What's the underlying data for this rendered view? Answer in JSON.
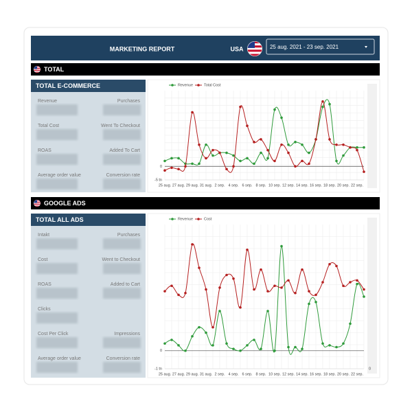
{
  "header": {
    "title": "MARKETING REPORT",
    "country": "USA",
    "date_range": "25 aug. 2021 - 23 sep. 2021"
  },
  "sections": [
    {
      "title": "TOTAL",
      "panel_title": "TOTAL E-COMMERCE",
      "metrics": [
        [
          "Revenue",
          "Purchases"
        ],
        [
          "Total Cost",
          "Went To Checkout"
        ],
        [
          "ROAS",
          "Added To Cart"
        ],
        [
          "Average order value",
          "Conversion rate"
        ]
      ],
      "chart": {
        "type": "line",
        "categories": [
          "25 aug.",
          null,
          "27 aug.",
          null,
          "29 aug.",
          null,
          "31 aug.",
          null,
          "2 sep.",
          null,
          "4 sep.",
          null,
          "6 sep.",
          null,
          "8 sep.",
          null,
          "10 sep.",
          null,
          "12 sep.",
          null,
          "14 sep.",
          null,
          "16 sep.",
          null,
          "18 sep.",
          null,
          "20 sep.",
          null,
          "22 sep.",
          null
        ],
        "series": [
          {
            "name": "Revenue",
            "color": "#2e9a3a",
            "values": [
              2,
              3,
              3,
              1,
              1,
              1,
              8,
              4,
              5,
              5,
              4,
              2,
              3,
              1,
              5,
              3,
              21,
              18,
              8,
              9,
              8,
              5,
              10,
              22,
              23,
              2,
              4,
              7,
              7,
              7
            ]
          },
          {
            "name": "Total Cost",
            "color": "#b51f1f",
            "values": [
              -1.5,
              -0.5,
              -1,
              0,
              20,
              8,
              3,
              6,
              5,
              -1,
              0,
              22,
              15,
              9,
              10,
              6,
              2,
              8,
              5,
              0,
              2,
              1,
              10,
              24,
              10,
              8,
              8,
              7,
              6,
              -2
            ]
          }
        ],
        "ylim": [
          -5,
          28
        ],
        "yticks": [
          0,
          {
            "value": -5,
            "label": "-5 tn"
          }
        ],
        "grid": true
      }
    },
    {
      "title": "GOOGLE ADS",
      "panel_title": "TOTAL ALL ADS",
      "metrics": [
        [
          "Intakt",
          "Purchases"
        ],
        [
          "Cost",
          "Went to Checkout"
        ],
        [
          "ROAS",
          "Added to Cart"
        ],
        [
          "Clicks",
          null
        ],
        [
          "Cost Per Click",
          "Impressions"
        ],
        [
          "Average order value",
          "Conversion rate"
        ]
      ],
      "chart": {
        "type": "line",
        "categories": [
          "25 aug.",
          null,
          "27 aug.",
          null,
          "29 aug.",
          null,
          "31 aug.",
          null,
          "2 sep.",
          null,
          "4 sep.",
          null,
          "6 sep.",
          null,
          "8 sep.",
          null,
          "10 sep.",
          null,
          "12 sep.",
          null,
          "14 sep.",
          null,
          "16 sep.",
          null,
          "18 sep.",
          null,
          "20 sep.",
          null,
          "22 sep.",
          null
        ],
        "series": [
          {
            "name": "Revenue",
            "color": "#2e9a3a",
            "values": [
              0.4,
              0.6,
              0.3,
              0,
              0.8,
              1.3,
              1,
              0.3,
              2.2,
              0.4,
              0.1,
              0,
              0.3,
              0.6,
              0.1,
              2.2,
              0,
              5.8,
              0.2,
              0.2,
              0.1,
              2.6,
              2.7,
              0.4,
              0.3,
              0.2,
              0.4,
              1.5,
              3.7,
              3.0
            ]
          },
          {
            "name": "Cost",
            "color": "#b51f1f",
            "axis": "y2",
            "values": [
              4.3,
              4.6,
              4.1,
              4.2,
              6.9,
              5.6,
              4.4,
              2.3,
              4.5,
              5.2,
              5.0,
              3.4,
              6.6,
              4.4,
              5.5,
              4.3,
              4.6,
              4.5,
              4.9,
              4.2,
              5.5,
              4.3,
              4.1,
              4.8,
              5.8,
              5.7,
              4.6,
              4.8,
              4.9,
              4.4
            ]
          }
        ],
        "ylim": [
          -1,
          7
        ],
        "yticks": [
          0,
          {
            "value": -1,
            "label": "-1 tn"
          }
        ],
        "y2lim": [
          0,
          8
        ],
        "y2ticks": [
          0
        ],
        "grid": true
      }
    }
  ]
}
